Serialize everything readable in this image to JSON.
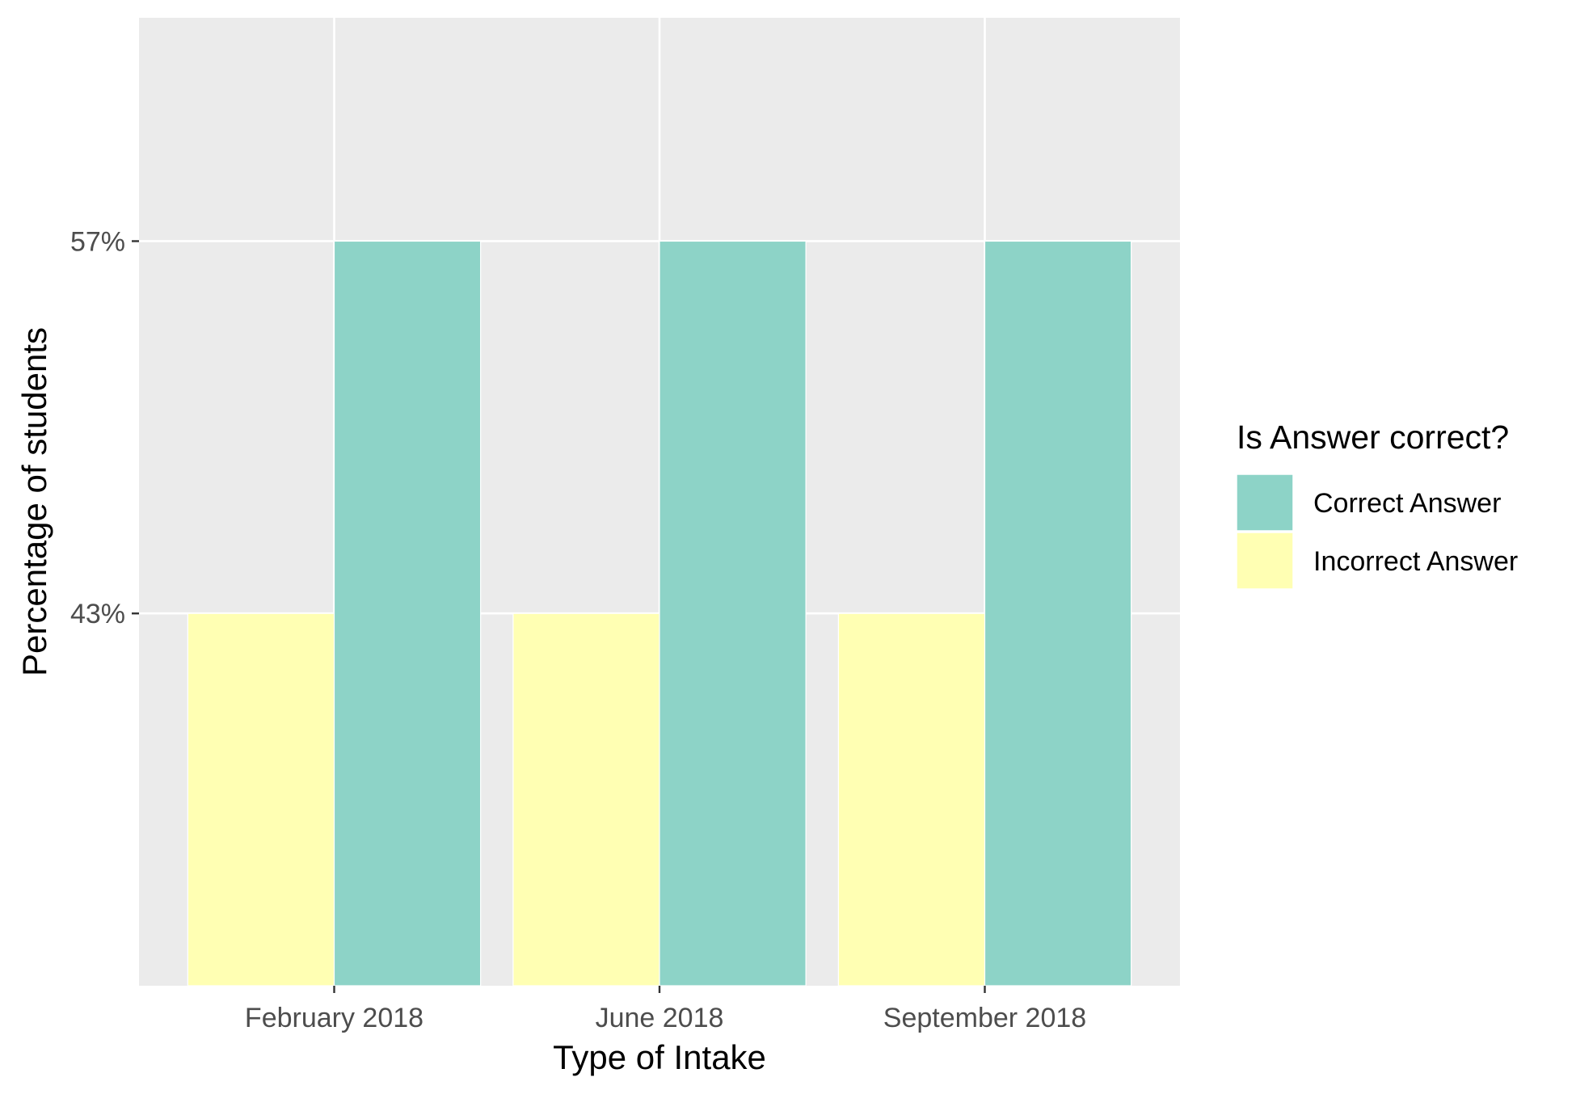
{
  "chart_data": {
    "type": "bar",
    "xlabel": "Type of Intake",
    "ylabel": "Percentage of students",
    "categories": [
      "February 2018",
      "June 2018",
      "September 2018"
    ],
    "series": [
      {
        "name": "Incorrect Answer",
        "color": "#ffffb3",
        "values": [
          0.43,
          0.43,
          0.43
        ]
      },
      {
        "name": "Correct Answer",
        "color": "#8dd3c7",
        "values": [
          0.57,
          0.57,
          0.57
        ]
      }
    ],
    "yticks": [
      {
        "value": 0.43,
        "label": "43%"
      },
      {
        "value": 0.57,
        "label": "57%"
      }
    ],
    "ylim": [
      0.29,
      0.654
    ],
    "grid": true,
    "panel_background": "#ebebeb",
    "legend": {
      "title": "Is Answer correct?",
      "placement": "right",
      "items": [
        {
          "label": "Correct Answer",
          "color": "#8dd3c7"
        },
        {
          "label": "Incorrect Answer",
          "color": "#ffffb3"
        }
      ]
    }
  }
}
